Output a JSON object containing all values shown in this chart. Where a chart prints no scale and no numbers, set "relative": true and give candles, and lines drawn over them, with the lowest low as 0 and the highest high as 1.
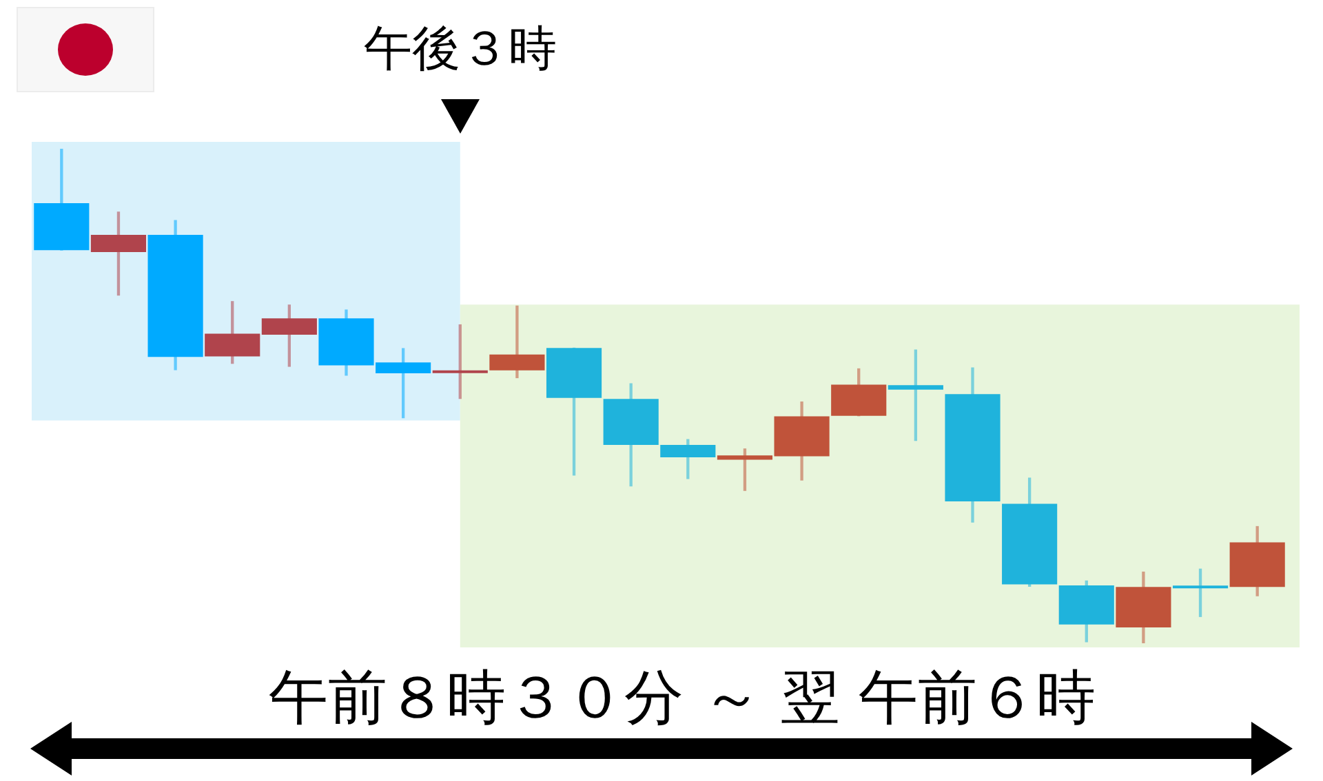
{
  "chart_data": {
    "type": "candlestick",
    "relative": true,
    "categories": [
      null,
      null,
      null,
      null,
      null,
      null,
      null,
      null,
      null,
      null,
      null,
      null,
      null,
      null,
      null,
      null,
      null,
      null,
      null,
      null,
      null,
      null
    ],
    "ohlc": [
      [
        0.89,
        1.0,
        0.795,
        0.795
      ],
      [
        0.791,
        0.872,
        0.704,
        0.826
      ],
      [
        0.826,
        0.855,
        0.553,
        0.579
      ],
      [
        0.58,
        0.691,
        0.566,
        0.626
      ],
      [
        0.624,
        0.684,
        0.56,
        0.657
      ],
      [
        0.657,
        0.674,
        0.542,
        0.562
      ],
      [
        0.568,
        0.596,
        0.456,
        0.546
      ],
      [
        0.549,
        0.644,
        0.495,
        0.549
      ],
      [
        0.552,
        0.682,
        0.537,
        0.584
      ],
      [
        0.597,
        0.597,
        0.34,
        0.496
      ],
      [
        0.494,
        0.525,
        0.318,
        0.401
      ],
      [
        0.401,
        0.412,
        0.333,
        0.376
      ],
      [
        0.371,
        0.393,
        0.309,
        0.38
      ],
      [
        0.378,
        0.488,
        0.33,
        0.459
      ],
      [
        0.46,
        0.555,
        0.46,
        0.523
      ],
      [
        0.522,
        0.593,
        0.41,
        0.513
      ],
      [
        0.504,
        0.557,
        0.245,
        0.287
      ],
      [
        0.282,
        0.334,
        0.115,
        0.119
      ],
      [
        0.117,
        0.126,
        0.003,
        0.038
      ],
      [
        0.032,
        0.144,
        0.0,
        0.114
      ],
      [
        0.114,
        0.15,
        0.054,
        0.114
      ],
      [
        0.114,
        0.236,
        0.096,
        0.204
      ]
    ],
    "colors": [
      "#00aaff",
      "#b0444c",
      "#00aaff",
      "#b0444c",
      "#b0444c",
      "#00aaff",
      "#00aaff",
      "#b0444c",
      "#c0533a",
      "#1fb3dc",
      "#1fb3dc",
      "#1fb3dc",
      "#c0533a",
      "#c0533a",
      "#c0533a",
      "#1fb3dc",
      "#1fb3dc",
      "#1fb3dc",
      "#1fb3dc",
      "#c0533a",
      "#1fb3dc",
      "#c0533a"
    ],
    "annotations": [
      "午後３時",
      "午前８時３０分 ～ 翌 午前６時"
    ]
  }
}
